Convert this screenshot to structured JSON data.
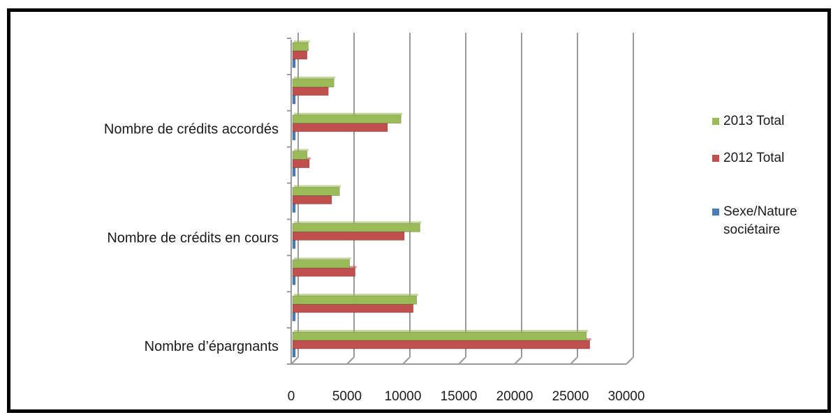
{
  "chart_data": {
    "type": "bar",
    "orientation": "horizontal",
    "style": "3d-clustered",
    "title": "",
    "xlabel": "",
    "ylabel": "",
    "xlim": [
      0,
      30000
    ],
    "x_ticks": [
      "0",
      "5000",
      "10000",
      "15000",
      "20000",
      "25000",
      "30000"
    ],
    "grid": "vertical",
    "legend_position": "right",
    "categories": [
      "Nombre d’épargnants",
      "",
      "",
      "Nombre de crédits en cours",
      "",
      "",
      "Nombre de crédits accordés",
      "",
      ""
    ],
    "series": [
      {
        "name": "Sexe/Nature sociétaire",
        "color": "#4a7ebb",
        "values": [
          0,
          0,
          0,
          0,
          0,
          0,
          0,
          0,
          0
        ]
      },
      {
        "name": "2012 Total",
        "color": "#c0504d",
        "values": [
          26600,
          10800,
          5600,
          10000,
          3500,
          1500,
          8500,
          3200,
          1300
        ]
      },
      {
        "name": "2013 Total",
        "color": "#9bbb59",
        "values": [
          26300,
          11100,
          5100,
          11400,
          4200,
          1300,
          9700,
          3700,
          1400
        ]
      }
    ]
  }
}
